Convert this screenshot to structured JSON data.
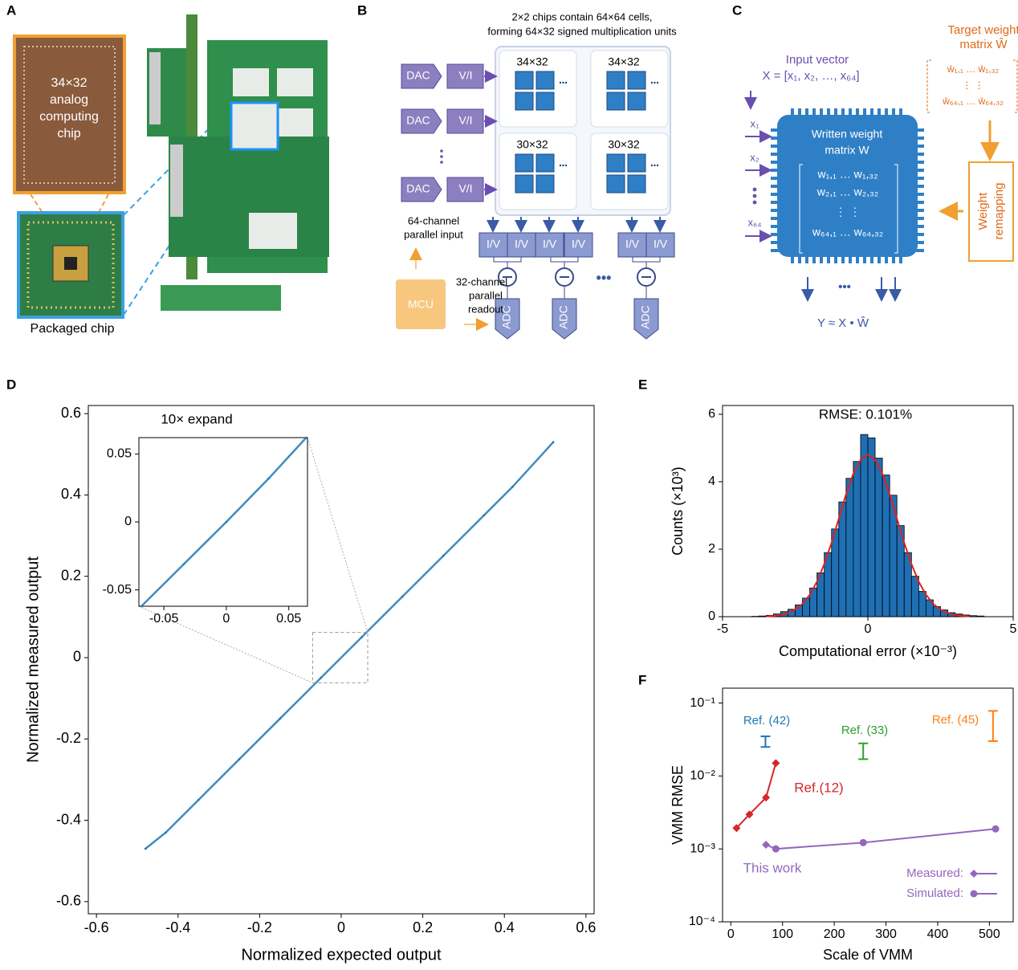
{
  "panel_labels": [
    "A",
    "B",
    "C",
    "D",
    "E",
    "F"
  ],
  "panel_a": {
    "chip_label": [
      "34×32",
      "analog",
      "computing",
      "chip"
    ],
    "package_label": "Packaged chip"
  },
  "panel_b": {
    "title_lines": [
      "2×2 chips contain 64×64 cells,",
      "forming 64×32 signed multiplication units"
    ],
    "dac": "DAC",
    "vi": "V/I",
    "iv": "I/V",
    "adc": "ADC",
    "mcu": "MCU",
    "array_labels": [
      "34×32",
      "34×32",
      "30×32",
      "30×32"
    ],
    "input_label": [
      "64-channel",
      "parallel input"
    ],
    "readout_label": [
      "32-channel",
      "parallel",
      "readout"
    ]
  },
  "panel_c": {
    "target_label": [
      "Target weight",
      "matrix Ŵ"
    ],
    "target_matrix": [
      "ŵ₁,₁ … ŵ₁,₃₂",
      "⋮          ⋮",
      "ŵ₆₄,₁ … ŵ₆₄,₃₂"
    ],
    "input_label": [
      "Input vector",
      "X = [x₁, x₂, …, x₆₄]"
    ],
    "inputs": [
      "x₁",
      "x₂",
      "x₆₄"
    ],
    "chip_label": [
      "Written weight",
      "matrix W"
    ],
    "matrix": [
      "w₁,₁ … w₁,₃₂",
      "w₂,₁ … w₂,₃₂",
      "⋮          ⋮",
      "w₆₄,₁ … w₆₄,₃₂"
    ],
    "remap": [
      "Weight",
      "remapping"
    ],
    "output": "Y ≈ X • Ŵ"
  },
  "chart_data": [
    {
      "type": "scatter",
      "xlabel": "Normalized expected output",
      "ylabel": "Normalized measured output",
      "xlim": [
        -0.62,
        0.62
      ],
      "ylim": [
        -0.63,
        0.62
      ],
      "xticks": [
        -0.6,
        -0.4,
        -0.2,
        0,
        0.2,
        0.4,
        0.6
      ],
      "yticks": [
        -0.6,
        -0.4,
        -0.2,
        0,
        0.2,
        0.4,
        0.6
      ],
      "series": [
        {
          "color": "#1f77b4",
          "x": [
            -0.48,
            -0.43,
            -0.35,
            -0.25,
            -0.15,
            -0.05,
            0.05,
            0.15,
            0.25,
            0.35,
            0.42,
            0.52
          ],
          "values": [
            -0.47,
            -0.43,
            -0.35,
            -0.25,
            -0.15,
            -0.05,
            0.05,
            0.15,
            0.25,
            0.35,
            0.42,
            0.53
          ]
        }
      ]
    },
    {
      "type": "scatter",
      "title": "10× expand",
      "xlim": [
        -0.07,
        0.065
      ],
      "ylim": [
        -0.062,
        0.062
      ],
      "xticks": [
        -0.05,
        0,
        0.05
      ],
      "yticks": [
        -0.05,
        0,
        0.05
      ],
      "series": [
        {
          "color": "#1f77b4",
          "x": [
            -0.068,
            -0.034,
            0,
            0.034,
            0.064
          ],
          "values": [
            -0.062,
            -0.031,
            0,
            0.032,
            0.062
          ]
        }
      ]
    },
    {
      "type": "histogram",
      "title": "RMSE: 0.101%",
      "xlabel": "Computational error (×10⁻³)",
      "ylabel": "Counts (×10³)",
      "xlim": [
        -5,
        5
      ],
      "ylim": [
        0,
        6.26
      ],
      "xticks": [
        -5,
        0,
        5
      ],
      "yticks": [
        0,
        2,
        4,
        6
      ],
      "color": "#1f6fb4",
      "bins": [
        -4,
        -3.75,
        -3.5,
        -3.25,
        -3,
        -2.75,
        -2.5,
        -2.25,
        -2,
        -1.75,
        -1.5,
        -1.25,
        -1,
        -0.75,
        -0.5,
        -0.25,
        0,
        0.25,
        0.5,
        0.75,
        1,
        1.25,
        1.5,
        1.75,
        2,
        2.25,
        2.5,
        2.75,
        3,
        3.25,
        3.5,
        3.75,
        4
      ],
      "values": [
        0.01,
        0.02,
        0.04,
        0.08,
        0.15,
        0.22,
        0.35,
        0.55,
        0.85,
        1.3,
        1.9,
        2.6,
        3.4,
        4.1,
        4.6,
        5.4,
        5.3,
        4.7,
        4.2,
        3.6,
        2.7,
        1.9,
        1.2,
        0.75,
        0.5,
        0.3,
        0.2,
        0.12,
        0.08,
        0.05,
        0.03,
        0.02
      ],
      "fit": {
        "color": "#e02020",
        "x": [
          -3.5,
          -3.25,
          -3,
          -2.75,
          -2.5,
          -2.25,
          -2,
          -1.75,
          -1.5,
          -1.25,
          -1,
          -0.75,
          -0.5,
          -0.25,
          0,
          0.25,
          0.5,
          0.75,
          1,
          1.25,
          1.5,
          1.75,
          2,
          2.25,
          2.5,
          2.75,
          3,
          3.25,
          3.5
        ],
        "values": [
          0.01,
          0.02,
          0.05,
          0.11,
          0.21,
          0.38,
          0.65,
          1.04,
          1.56,
          2.19,
          2.91,
          3.63,
          4.24,
          4.65,
          4.8,
          4.65,
          4.24,
          3.63,
          2.91,
          2.19,
          1.56,
          1.04,
          0.65,
          0.38,
          0.21,
          0.11,
          0.05,
          0.02,
          0.01
        ]
      }
    },
    {
      "type": "line",
      "xlabel": "Scale of VMM",
      "ylabel": "VMM RMSE",
      "log_y": true,
      "xlim": [
        -16,
        546
      ],
      "ylim": [
        0.0001,
        0.16
      ],
      "xticks": [
        0,
        100,
        200,
        300,
        400,
        500
      ],
      "yticks": [
        {
          "value": 0.0001,
          "label": "10⁻⁴"
        },
        {
          "value": 0.001,
          "label": "10⁻³"
        },
        {
          "value": 0.01,
          "label": "10⁻²"
        },
        {
          "value": 0.1,
          "label": "10⁻¹"
        }
      ],
      "series": [
        {
          "name": "Ref.(12)",
          "color": "#d62728",
          "marker": "diamond",
          "x": [
            11,
            36,
            68,
            87
          ],
          "values": [
            0.00193,
            0.00297,
            0.00505,
            0.015
          ]
        },
        {
          "name": "This work",
          "color": "#9467bd",
          "markers": [
            "diamond",
            "circle",
            "circle",
            "circle"
          ],
          "x": [
            68,
            87,
            256,
            512
          ],
          "values": [
            0.00114,
            0.001,
            0.00122,
            0.00188
          ]
        }
      ],
      "error_bars": [
        {
          "name": "Ref. (42)",
          "color": "#1f77b4",
          "x": 67,
          "low": 0.025,
          "high": 0.035
        },
        {
          "name": "Ref. (33)",
          "color": "#2ca02c",
          "x": 256,
          "low": 0.017,
          "high": 0.028
        },
        {
          "name": "Ref. (45)",
          "color": "#ff7f0e",
          "x": 507,
          "low": 0.03,
          "high": 0.078
        }
      ],
      "legend": [
        "Measured:",
        "Simulated:"
      ]
    }
  ]
}
